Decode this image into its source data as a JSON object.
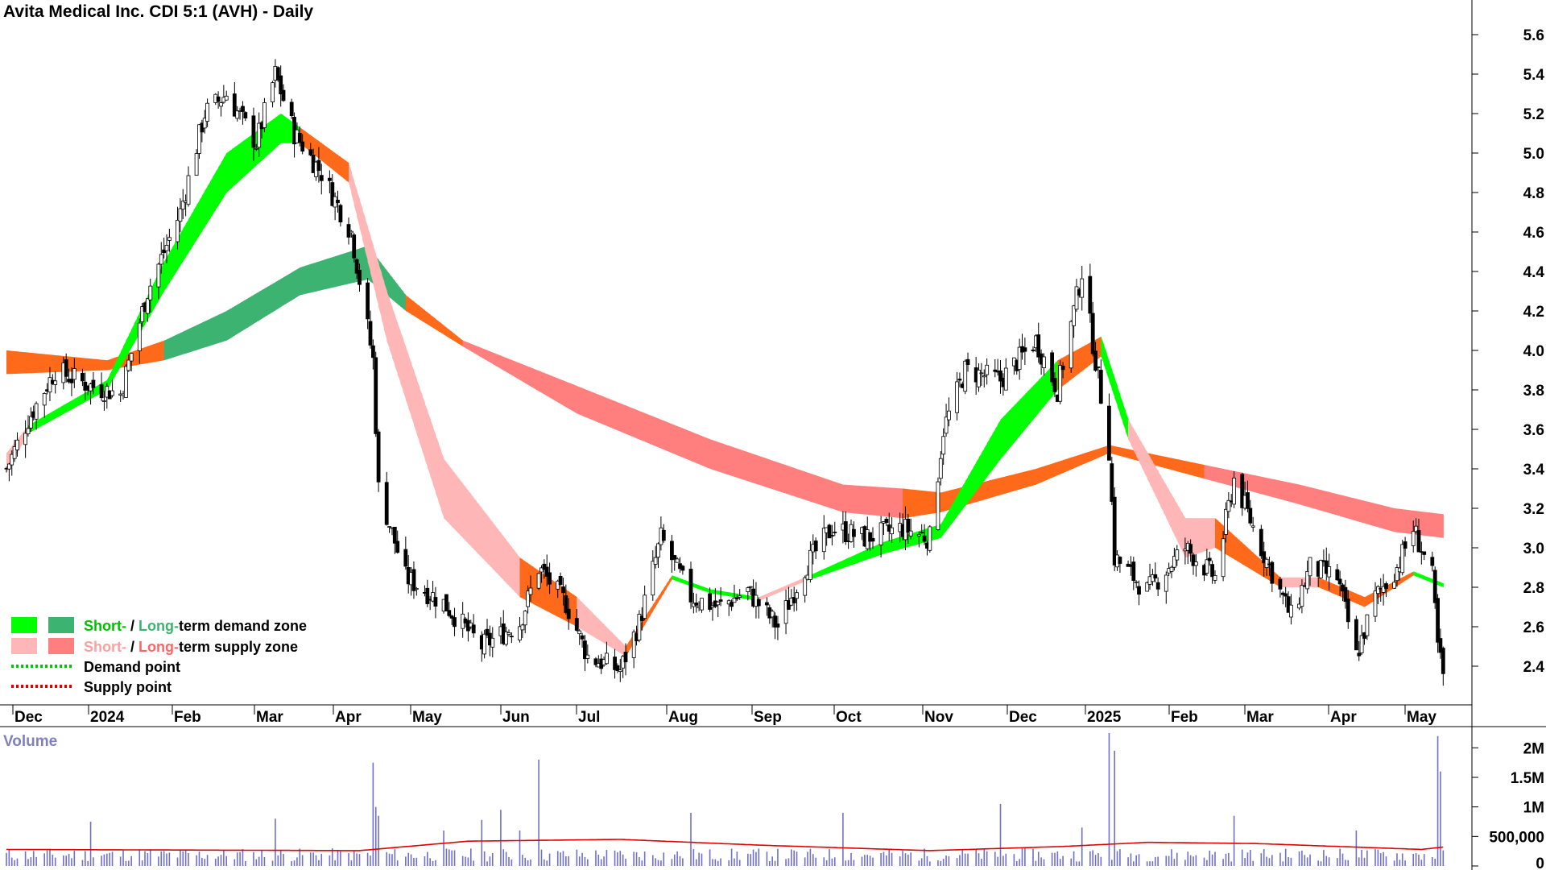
{
  "title": "Avita Medical Inc. CDI 5:1 (AVH) - Daily",
  "volume_label": "Volume",
  "colors": {
    "short_demand": "#00ff00",
    "long_demand": "#3cb371",
    "short_supply": "#ffb6b6",
    "long_supply": "#ff7f7f",
    "transition_zone": "#ff6a1a",
    "demand_point": "#00c800",
    "supply_point": "#e00000",
    "volume_bar": "#7070cc",
    "volume_avg": "#e00000",
    "up_candle": "#ffffff",
    "down_candle": "#000000"
  },
  "legend": {
    "row1": {
      "short": "Short-",
      "sep": " / ",
      "long": "Long-",
      "rest": "term demand zone"
    },
    "row2": {
      "short": "Short-",
      "sep": " / ",
      "long": "Long-",
      "rest": "term supply zone"
    },
    "row3": "Demand point",
    "row4": "Supply point"
  },
  "chart_data": [
    {
      "type": "candlestick",
      "title": "Avita Medical Inc. CDI 5:1 (AVH) - Daily",
      "ylim": [
        2.2,
        5.7
      ],
      "y_ticks": [
        "5.6",
        "5.4",
        "5.2",
        "5.0",
        "4.8",
        "4.6",
        "4.4",
        "4.2",
        "4.0",
        "3.8",
        "3.6",
        "3.4",
        "3.2",
        "3.0",
        "2.8",
        "2.6",
        "2.4"
      ],
      "x_ticks": [
        "Dec",
        "2024",
        "Feb",
        "Mar",
        "Apr",
        "May",
        "Jun",
        "Jul",
        "Aug",
        "Sep",
        "Oct",
        "Nov",
        "Dec",
        "2025",
        "Feb",
        "Mar",
        "Apr",
        "May"
      ],
      "x_start": "2023-11-27",
      "close_anchors": [
        [
          "2023-11-27",
          3.4
        ],
        [
          "2023-12-05",
          3.65
        ],
        [
          "2023-12-15",
          3.9
        ],
        [
          "2023-12-28",
          3.82
        ],
        [
          "2024-01-08",
          3.78
        ],
        [
          "2024-01-18",
          4.3
        ],
        [
          "2024-01-30",
          4.7
        ],
        [
          "2024-02-08",
          5.2
        ],
        [
          "2024-02-16",
          5.3
        ],
        [
          "2024-02-27",
          5.05
        ],
        [
          "2024-03-05",
          5.4
        ],
        [
          "2024-03-12",
          5.1
        ],
        [
          "2024-03-22",
          4.9
        ],
        [
          "2024-04-02",
          4.6
        ],
        [
          "2024-04-10",
          3.95
        ],
        [
          "2024-04-12",
          3.3
        ],
        [
          "2024-04-22",
          2.85
        ],
        [
          "2024-05-06",
          2.72
        ],
        [
          "2024-05-20",
          2.5
        ],
        [
          "2024-06-03",
          2.62
        ],
        [
          "2024-06-10",
          2.9
        ],
        [
          "2024-06-20",
          2.72
        ],
        [
          "2024-06-28",
          2.45
        ],
        [
          "2024-07-10",
          2.38
        ],
        [
          "2024-07-17",
          2.62
        ],
        [
          "2024-07-25",
          3.05
        ],
        [
          "2024-08-05",
          2.75
        ],
        [
          "2024-08-15",
          2.7
        ],
        [
          "2024-08-26",
          2.78
        ],
        [
          "2024-09-06",
          2.6
        ],
        [
          "2024-09-16",
          2.9
        ],
        [
          "2024-09-26",
          3.1
        ],
        [
          "2024-10-08",
          3.05
        ],
        [
          "2024-10-22",
          3.1
        ],
        [
          "2024-11-01",
          3.05
        ],
        [
          "2024-11-06",
          3.6
        ],
        [
          "2024-11-14",
          3.9
        ],
        [
          "2024-11-27",
          3.85
        ],
        [
          "2024-12-10",
          4.05
        ],
        [
          "2024-12-18",
          3.8
        ],
        [
          "2024-12-27",
          4.4
        ],
        [
          "2025-01-06",
          3.5
        ],
        [
          "2025-01-08",
          2.95
        ],
        [
          "2025-01-20",
          2.78
        ],
        [
          "2025-02-03",
          3.0
        ],
        [
          "2025-02-14",
          2.85
        ],
        [
          "2025-02-21",
          3.35
        ],
        [
          "2025-03-03",
          3.0
        ],
        [
          "2025-03-14",
          2.65
        ],
        [
          "2025-03-21",
          2.9
        ],
        [
          "2025-03-31",
          2.85
        ],
        [
          "2025-04-07",
          2.45
        ],
        [
          "2025-04-14",
          2.75
        ],
        [
          "2025-04-22",
          2.9
        ],
        [
          "2025-04-28",
          3.1
        ],
        [
          "2025-05-05",
          2.85
        ],
        [
          "2025-05-07",
          2.5
        ],
        [
          "2025-05-09",
          2.35
        ]
      ],
      "short_zone_anchors": [
        [
          "2023-11-27",
          3.48,
          3.38,
          "supply"
        ],
        [
          "2023-12-05",
          3.62,
          3.58,
          "demand"
        ],
        [
          "2024-01-03",
          3.85,
          3.8,
          "demand"
        ],
        [
          "2024-01-24",
          4.45,
          4.3,
          "demand"
        ],
        [
          "2024-02-16",
          5.0,
          4.8,
          "demand"
        ],
        [
          "2024-03-07",
          5.2,
          5.05,
          "demand"
        ],
        [
          "2024-03-14",
          5.13,
          5.05,
          "transition"
        ],
        [
          "2024-04-01",
          4.95,
          4.85,
          "supply"
        ],
        [
          "2024-04-15",
          4.3,
          4.05,
          "supply"
        ],
        [
          "2024-05-06",
          3.45,
          3.15,
          "supply"
        ],
        [
          "2024-06-03",
          2.95,
          2.75,
          "transition"
        ],
        [
          "2024-06-24",
          2.75,
          2.6,
          "supply"
        ],
        [
          "2024-07-12",
          2.5,
          2.45,
          "transition"
        ],
        [
          "2024-07-29",
          2.86,
          2.84,
          "demand"
        ],
        [
          "2024-08-12",
          2.79,
          2.77,
          "demand"
        ],
        [
          "2024-08-30",
          2.75,
          2.73,
          "supply"
        ],
        [
          "2024-09-16",
          2.85,
          2.83,
          "demand"
        ],
        [
          "2024-10-15",
          3.03,
          2.97,
          "demand"
        ],
        [
          "2024-11-05",
          3.12,
          3.05,
          "demand"
        ],
        [
          "2024-11-27",
          3.65,
          3.45,
          "demand"
        ],
        [
          "2024-12-18",
          3.95,
          3.8,
          "transition"
        ],
        [
          "2025-01-03",
          4.07,
          3.97,
          "demand"
        ],
        [
          "2025-01-13",
          3.65,
          3.55,
          "supply"
        ],
        [
          "2025-02-03",
          3.15,
          2.95,
          "supply"
        ],
        [
          "2025-02-14",
          3.15,
          3.0,
          "transition"
        ],
        [
          "2025-03-10",
          2.85,
          2.8,
          "supply"
        ],
        [
          "2025-03-24",
          2.85,
          2.8,
          "transition"
        ],
        [
          "2025-04-10",
          2.75,
          2.7,
          "transition"
        ],
        [
          "2025-04-28",
          2.88,
          2.86,
          "demand"
        ],
        [
          "2025-05-09",
          2.82,
          2.8,
          "transition"
        ]
      ],
      "long_zone_anchors": [
        [
          "2023-11-27",
          4.0,
          3.88,
          "transition"
        ],
        [
          "2024-01-03",
          3.95,
          3.9,
          "transition"
        ],
        [
          "2024-01-24",
          4.05,
          3.95,
          "demand"
        ],
        [
          "2024-02-16",
          4.2,
          4.05,
          "demand"
        ],
        [
          "2024-03-14",
          4.42,
          4.28,
          "demand"
        ],
        [
          "2024-04-08",
          4.53,
          4.36,
          "demand"
        ],
        [
          "2024-04-22",
          4.28,
          4.2,
          "transition"
        ],
        [
          "2024-05-13",
          4.05,
          4.02,
          "supply"
        ],
        [
          "2024-06-24",
          3.82,
          3.68,
          "supply"
        ],
        [
          "2024-08-12",
          3.55,
          3.4,
          "supply"
        ],
        [
          "2024-09-30",
          3.32,
          3.18,
          "supply"
        ],
        [
          "2024-10-22",
          3.3,
          3.15,
          "transition"
        ],
        [
          "2024-11-05",
          3.28,
          3.18,
          "transition"
        ],
        [
          "2024-12-10",
          3.4,
          3.32,
          "transition"
        ],
        [
          "2025-01-06",
          3.52,
          3.48,
          "transition"
        ],
        [
          "2025-02-10",
          3.42,
          3.35,
          "supply"
        ],
        [
          "2025-03-17",
          3.32,
          3.22,
          "supply"
        ],
        [
          "2025-04-21",
          3.2,
          3.08,
          "supply"
        ],
        [
          "2025-05-09",
          3.17,
          3.05,
          "supply"
        ]
      ]
    },
    {
      "type": "bar",
      "title": "Volume",
      "ylim": [
        0,
        2250000
      ],
      "y_ticks": [
        "2M",
        "1.5M",
        "1M",
        "500,000",
        "0"
      ],
      "typical_volume": 250000,
      "spikes": [
        [
          "2023-12-28",
          750000
        ],
        [
          "2024-03-05",
          800000
        ],
        [
          "2024-04-10",
          1750000
        ],
        [
          "2024-04-11",
          1000000
        ],
        [
          "2024-04-12",
          850000
        ],
        [
          "2024-05-06",
          600000
        ],
        [
          "2024-05-20",
          780000
        ],
        [
          "2024-05-27",
          950000
        ],
        [
          "2024-06-03",
          600000
        ],
        [
          "2024-06-10",
          1800000
        ],
        [
          "2024-08-05",
          900000
        ],
        [
          "2024-09-30",
          900000
        ],
        [
          "2024-11-27",
          1050000
        ],
        [
          "2024-12-27",
          650000
        ],
        [
          "2025-01-06",
          2250000
        ],
        [
          "2025-01-08",
          1950000
        ],
        [
          "2025-02-21",
          850000
        ],
        [
          "2025-04-07",
          600000
        ],
        [
          "2025-05-07",
          2200000
        ],
        [
          "2025-05-08",
          1600000
        ]
      ],
      "average_line": [
        [
          "2023-11-27",
          280000
        ],
        [
          "2024-04-05",
          260000
        ],
        [
          "2024-05-15",
          420000
        ],
        [
          "2024-07-10",
          450000
        ],
        [
          "2024-09-01",
          350000
        ],
        [
          "2024-11-01",
          260000
        ],
        [
          "2024-12-20",
          330000
        ],
        [
          "2025-01-20",
          400000
        ],
        [
          "2025-03-01",
          380000
        ],
        [
          "2025-05-01",
          280000
        ],
        [
          "2025-05-09",
          320000
        ]
      ]
    }
  ]
}
